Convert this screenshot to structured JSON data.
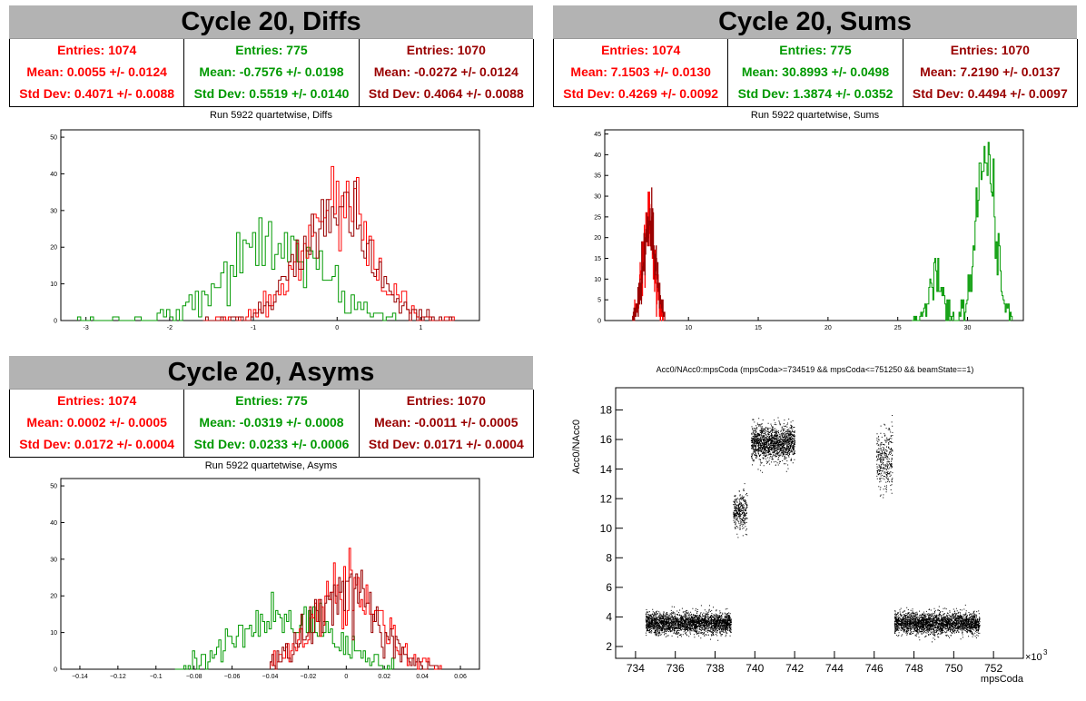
{
  "panels": {
    "diffs": {
      "banner": "Cycle 20, Diffs",
      "subtitle": "Run 5922 quartetwise, Diffs",
      "stats": [
        {
          "entries": "Entries: 1074",
          "mean": "Mean: 0.0055 +/- 0.0124",
          "std": "Std Dev: 0.4071 +/- 0.0088",
          "color": "#ff0000"
        },
        {
          "entries": "Entries: 775",
          "mean": "Mean: -0.7576 +/- 0.0198",
          "std": "Std Dev: 0.5519 +/- 0.0140",
          "color": "#009900"
        },
        {
          "entries": "Entries: 1070",
          "mean": "Mean: -0.0272 +/- 0.0124",
          "std": "Std Dev: 0.4064 +/- 0.0088",
          "color": "#990000"
        }
      ]
    },
    "sums": {
      "banner": "Cycle 20, Sums",
      "subtitle": "Run 5922 quartetwise, Sums",
      "stats": [
        {
          "entries": "Entries: 1074",
          "mean": "Mean: 7.1503 +/- 0.0130",
          "std": "Std Dev: 0.4269 +/- 0.0092",
          "color": "#ff0000"
        },
        {
          "entries": "Entries: 775",
          "mean": "Mean: 30.8993 +/- 0.0498",
          "std": "Std Dev: 1.3874 +/- 0.0352",
          "color": "#009900"
        },
        {
          "entries": "Entries: 1070",
          "mean": "Mean: 7.2190 +/- 0.0137",
          "std": "Std Dev: 0.4494 +/- 0.0097",
          "color": "#990000"
        }
      ]
    },
    "asyms": {
      "banner": "Cycle 20, Asyms",
      "subtitle": "Run 5922 quartetwise, Asyms",
      "stats": [
        {
          "entries": "Entries: 1074",
          "mean": "Mean: 0.0002 +/- 0.0005",
          "std": "Std Dev: 0.0172 +/- 0.0004",
          "color": "#ff0000"
        },
        {
          "entries": "Entries: 775",
          "mean": "Mean: -0.0319 +/- 0.0008",
          "std": "Std Dev: 0.0233 +/- 0.0006",
          "color": "#009900"
        },
        {
          "entries": "Entries: 1070",
          "mean": "Mean: -0.0011 +/- 0.0005",
          "std": "Std Dev: 0.0171 +/- 0.0004",
          "color": "#990000"
        }
      ]
    },
    "scatter": {
      "title": "Acc0/NAcc0:mpsCoda (mpsCoda>=734519 && mpsCoda<=751250 && beamState==1)"
    }
  },
  "chart_data": [
    {
      "type": "histogram",
      "id": "diffs",
      "xlim": [
        -3.3,
        1.7
      ],
      "ylim": [
        0,
        52
      ],
      "xticks": [
        -3,
        -2,
        -1,
        0,
        1
      ],
      "yticks": [
        0,
        10,
        20,
        30,
        40,
        50
      ],
      "series": [
        {
          "color": "#009900",
          "mean": -0.7576,
          "sd": 0.5519,
          "entries": 775,
          "xmin": -3.1,
          "xmax": 0.7
        },
        {
          "color": "#ff0000",
          "mean": 0.0055,
          "sd": 0.4071,
          "entries": 1074,
          "xmin": -1.6,
          "xmax": 1.4
        },
        {
          "color": "#990000",
          "mean": -0.0272,
          "sd": 0.4064,
          "entries": 1070,
          "xmin": -1.6,
          "xmax": 1.4
        }
      ]
    },
    {
      "type": "histogram",
      "id": "sums",
      "xlim": [
        4,
        34
      ],
      "ylim": [
        0,
        46
      ],
      "xticks": [
        10,
        15,
        20,
        25,
        30
      ],
      "yticks": [
        0,
        5,
        10,
        15,
        20,
        25,
        30,
        35,
        40,
        45
      ],
      "series": [
        {
          "color": "#009900",
          "mean": 30.8993,
          "sd": 1.3874,
          "entries": 775,
          "xmin": 26,
          "xmax": 33.2,
          "peaks": [
            {
              "x": 27.7,
              "sd": 0.5,
              "h": 12
            },
            {
              "x": 31.3,
              "sd": 0.65,
              "h": 40
            }
          ]
        },
        {
          "color": "#ff0000",
          "mean": 7.1503,
          "sd": 0.4269,
          "entries": 1074,
          "xmin": 6,
          "xmax": 8.3
        },
        {
          "color": "#990000",
          "mean": 7.219,
          "sd": 0.4494,
          "entries": 1070,
          "xmin": 6,
          "xmax": 8.3
        }
      ]
    },
    {
      "type": "histogram",
      "id": "asyms",
      "xlim": [
        -0.15,
        0.07
      ],
      "ylim": [
        0,
        52
      ],
      "xticks": [
        -0.14,
        -0.12,
        -0.1,
        -0.08,
        -0.06,
        -0.04,
        -0.02,
        0,
        0.02,
        0.04,
        0.06
      ],
      "xtick_labels": [
        "−0.14",
        "−0.12",
        "−0.1",
        "−0.08",
        "−0.06",
        "−0.04",
        "−0.02",
        "0",
        "0.02",
        "0.04",
        "0.06"
      ],
      "yticks": [
        0,
        10,
        20,
        30,
        40,
        50
      ],
      "series": [
        {
          "color": "#009900",
          "mean": -0.0319,
          "sd": 0.0233,
          "entries": 775,
          "xmin": -0.09,
          "xmax": 0.025
        },
        {
          "color": "#ff0000",
          "mean": 0.0002,
          "sd": 0.0172,
          "entries": 1074,
          "xmin": -0.04,
          "xmax": 0.05
        },
        {
          "color": "#990000",
          "mean": -0.0011,
          "sd": 0.0171,
          "entries": 1070,
          "xmin": -0.04,
          "xmax": 0.05
        }
      ]
    },
    {
      "type": "scatter",
      "id": "scatter",
      "xlabel": "mpsCoda",
      "ylabel": "Acc0/NAcc0",
      "x_multiplier": "×10",
      "x_multiplier_exp": "3",
      "xlim": [
        733,
        753.5
      ],
      "ylim": [
        1.2,
        19.5
      ],
      "xticks": [
        734,
        736,
        738,
        740,
        742,
        744,
        746,
        748,
        750,
        752
      ],
      "yticks": [
        2,
        4,
        6,
        8,
        10,
        12,
        14,
        16,
        18
      ],
      "clusters": [
        {
          "x": [
            734.5,
            738.8
          ],
          "y_mean": 3.6,
          "y_sd": 0.35,
          "n": 2600
        },
        {
          "x": [
            738.9,
            739.6
          ],
          "y_mean": 11.2,
          "y_sd": 0.6,
          "n": 320
        },
        {
          "x": [
            739.8,
            742.0
          ],
          "y_mean": 15.8,
          "y_sd": 0.6,
          "n": 1500
        },
        {
          "x": [
            746.1,
            746.9
          ],
          "y_mean": 14.7,
          "y_sd": 1.0,
          "n": 330
        },
        {
          "x": [
            747.0,
            751.3
          ],
          "y_mean": 3.6,
          "y_sd": 0.35,
          "n": 2600
        }
      ]
    }
  ]
}
